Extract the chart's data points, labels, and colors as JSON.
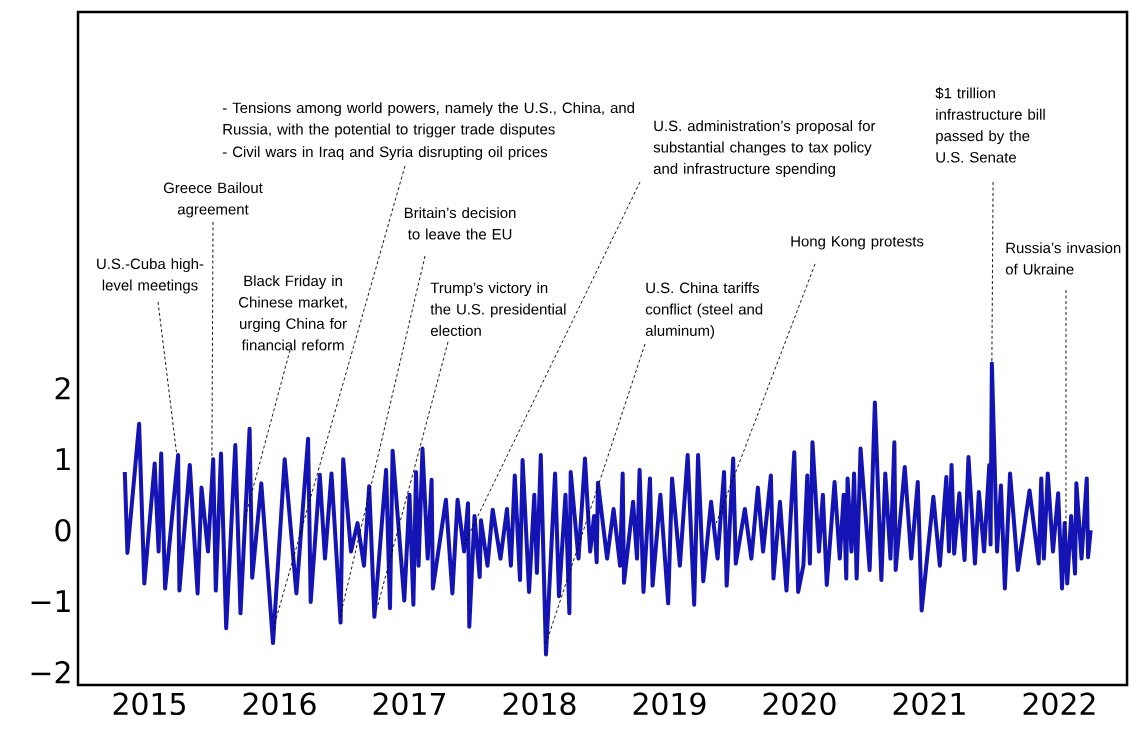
{
  "chart_data": {
    "type": "line",
    "color": "#1414b4",
    "x": [
      2014.81,
      2014.83,
      2014.92,
      2014.96,
      2015.04,
      2015.07,
      2015.09,
      2015.12,
      2015.22,
      2015.23,
      2015.31,
      2015.37,
      2015.4,
      2015.45,
      2015.49,
      2015.51,
      2015.55,
      2015.59,
      2015.66,
      2015.7,
      2015.77,
      2015.79,
      2015.86,
      2015.95,
      2016.04,
      2016.13,
      2016.22,
      2016.24,
      2016.31,
      2016.35,
      2016.4,
      2016.47,
      2016.49,
      2016.55,
      2016.6,
      2016.65,
      2016.69,
      2016.73,
      2016.82,
      2016.85,
      2016.87,
      2016.96,
      2017.0,
      2017.03,
      2017.05,
      2017.07,
      2017.1,
      2017.14,
      2017.17,
      2017.18,
      2017.28,
      2017.33,
      2017.37,
      2017.42,
      2017.45,
      2017.46,
      2017.5,
      2017.54,
      2017.55,
      2017.6,
      2017.64,
      2017.7,
      2017.75,
      2017.78,
      2017.81,
      2017.85,
      2017.87,
      2017.92,
      2017.96,
      2017.98,
      2018.01,
      2018.05,
      2018.12,
      2018.15,
      2018.2,
      2018.23,
      2018.24,
      2018.3,
      2018.35,
      2018.39,
      2018.42,
      2018.44,
      2018.45,
      2018.52,
      2018.57,
      2018.62,
      2018.64,
      2018.65,
      2018.72,
      2018.75,
      2018.77,
      2018.8,
      2018.85,
      2018.87,
      2018.93,
      2018.99,
      2019.02,
      2019.08,
      2019.14,
      2019.19,
      2019.22,
      2019.26,
      2019.32,
      2019.37,
      2019.42,
      2019.44,
      2019.49,
      2019.51,
      2019.58,
      2019.63,
      2019.68,
      2019.72,
      2019.78,
      2019.8,
      2019.85,
      2019.9,
      2019.96,
      2019.99,
      2020.03,
      2020.06,
      2020.08,
      2020.1,
      2020.15,
      2020.18,
      2020.21,
      2020.27,
      2020.31,
      2020.34,
      2020.36,
      2020.37,
      2020.4,
      2020.42,
      2020.44,
      2020.47,
      2020.54,
      2020.58,
      2020.63,
      2020.66,
      2020.7,
      2020.73,
      2020.74,
      2020.81,
      2020.86,
      2020.91,
      2020.94,
      2021.03,
      2021.08,
      2021.13,
      2021.15,
      2021.17,
      2021.19,
      2021.23,
      2021.27,
      2021.3,
      2021.35,
      2021.38,
      2021.42,
      2021.46,
      2021.47,
      2021.48,
      2021.52,
      2021.55,
      2021.58,
      2021.62,
      2021.68,
      2021.77,
      2021.84,
      2021.86,
      2021.88,
      2021.91,
      2021.95,
      2021.99,
      2022.02,
      2022.04,
      2022.06,
      2022.09,
      2022.12,
      2022.13,
      2022.17,
      2022.21,
      2022.22,
      2022.24
    ],
    "values": [
      0.82,
      -0.32,
      1.5,
      -0.75,
      0.94,
      -0.3,
      1.08,
      -0.82,
      1.06,
      -0.85,
      0.92,
      -0.89,
      0.6,
      -0.3,
      1.0,
      -0.85,
      1.08,
      -1.38,
      1.2,
      -1.17,
      1.43,
      -0.67,
      0.66,
      -1.59,
      1.0,
      -0.89,
      1.29,
      -1.01,
      0.78,
      -0.4,
      0.8,
      -1.3,
      1.0,
      -0.3,
      0.1,
      -0.5,
      0.62,
      -1.22,
      0.85,
      -1.1,
      1.12,
      -0.99,
      0.5,
      -1.05,
      0.82,
      -0.5,
      1.15,
      -0.4,
      0.71,
      -0.82,
      0.43,
      -0.89,
      0.43,
      -0.3,
      0.38,
      -1.36,
      0.2,
      -0.66,
      0.14,
      -0.5,
      0.29,
      -0.4,
      0.3,
      -0.5,
      0.77,
      -0.7,
      0.99,
      -0.87,
      0.5,
      -0.6,
      1.06,
      -1.75,
      0.8,
      -0.93,
      0.5,
      -1.17,
      0.82,
      -0.4,
      1.01,
      -0.3,
      0.2,
      -0.45,
      0.67,
      -0.4,
      0.3,
      -0.5,
      0.8,
      -0.74,
      0.4,
      -0.4,
      0.85,
      -0.87,
      0.73,
      -0.78,
      0.5,
      -1.03,
      0.73,
      -0.5,
      1.06,
      -1.05,
      1.06,
      -0.72,
      0.4,
      -0.4,
      0.82,
      -0.78,
      1.01,
      -0.47,
      0.3,
      -0.4,
      0.6,
      -0.3,
      0.77,
      -0.68,
      0.4,
      -0.85,
      1.1,
      -0.87,
      -0.5,
      0.77,
      -0.47,
      1.24,
      -0.3,
      0.5,
      -0.77,
      0.68,
      -0.4,
      0.5,
      -0.68,
      0.73,
      -0.3,
      0.8,
      -0.68,
      1.15,
      -0.56,
      1.8,
      -0.7,
      0.8,
      -0.4,
      1.24,
      -0.56,
      0.89,
      -0.4,
      0.68,
      -1.13,
      0.47,
      -0.5,
      0.75,
      -0.3,
      0.92,
      -0.33,
      0.52,
      -0.42,
      1.03,
      -0.47,
      0.54,
      -0.3,
      0.92,
      -0.2,
      2.35,
      -0.3,
      0.63,
      -0.82,
      0.8,
      -0.56,
      0.56,
      -0.47,
      0.73,
      -0.4,
      0.8,
      -0.3,
      0.52,
      -0.82,
      0.1,
      -0.75,
      0.2,
      -0.61,
      0.66,
      -0.4,
      0.73,
      -0.38,
      0.0
    ],
    "xlim": [
      2014.45,
      2022.52
    ],
    "ylim": [
      -2.18,
      7.3
    ],
    "xticks": [
      2015,
      2016,
      2017,
      2018,
      2019,
      2020,
      2021,
      2022
    ],
    "yticks": [
      {
        "value": -2,
        "label": "−2"
      },
      {
        "value": -1,
        "label": "−1"
      },
      0,
      1,
      2
    ],
    "annotations": [
      "- Tensions among world powers, namely the U.S., China, and Russia, with the potential to trigger trade disputes",
      {
        "text": "- Civil wars in Iraq and Syria disrupting oil prices",
        "x": 2015.95,
        "y": -1.4
      },
      {
        "text": "Greece Bailout agreement",
        "x": 2015.48,
        "y": 1.0
      },
      {
        "text": "U.S.-Cuba high-level meetings",
        "x": 2015.21,
        "y": 1.06
      },
      {
        "text": "Black Friday in Chinese market, urging China for financial reform",
        "x": 2015.73,
        "y": 0.14
      },
      {
        "text": "Britain’s decision to leave the EU",
        "x": 2016.46,
        "y": -1.27
      },
      {
        "text": "Trump’s victory in the U.S. presidential election",
        "x": 2016.75,
        "y": -1.1
      },
      {
        "text": "U.S. administration’s proposal for substantial changes to tax policy and infrastructure spending",
        "x": 2017.42,
        "y": -0.2
      },
      {
        "text": "U.S. China tariffs conflict (steel and aluminum)",
        "x": 2018.05,
        "y": -1.6
      },
      {
        "text": "Hong Kong protests",
        "x": 2019.36,
        "y": 0.1
      },
      {
        "text": "$1 trillion infrastructure bill passed by the U.S. Senate",
        "x": 2021.48,
        "y": 2.35
      },
      {
        "text": "Russia’s invasion of Ukraine",
        "x": 2022.05,
        "y": 0.05
      }
    ]
  }
}
